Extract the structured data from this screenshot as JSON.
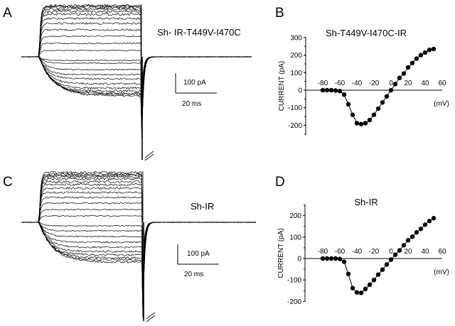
{
  "panels": {
    "A": {
      "letter": "A",
      "title": "Sh- IR-T449V-I470C",
      "scale_current": "100 pA",
      "scale_time": "20 ms"
    },
    "B": {
      "letter": "B"
    },
    "C": {
      "letter": "C",
      "title": "Sh-IR",
      "scale_current": "100 pA",
      "scale_time": "20 ms"
    },
    "D": {
      "letter": "D"
    }
  },
  "chart_data": [
    {
      "panel": "A",
      "type": "line",
      "description_kind": "current traces",
      "scale_bars": {
        "current": "100 pA",
        "time": "20 ms"
      }
    },
    {
      "panel": "B",
      "type": "line",
      "title": "Sh-T449V-I470C-IR",
      "ylabel": "CURRENT (pA)",
      "xlabel": "(mV)",
      "xlim": [
        -80,
        60
      ],
      "ylim": [
        -250,
        300
      ],
      "xticks": [
        "-80",
        "-60",
        "-40",
        "-20",
        "0",
        "20",
        "40",
        "60"
      ],
      "yticks": [
        "300",
        "200",
        "100",
        "0",
        "-100",
        "-200"
      ],
      "marker": "filled-circle",
      "x": [
        -80,
        -75,
        -70,
        -65,
        -60,
        -55,
        -50,
        -45,
        -40,
        -35,
        -30,
        -25,
        -20,
        -15,
        -10,
        -5,
        0,
        5,
        10,
        15,
        20,
        25,
        30,
        35,
        40,
        45,
        50
      ],
      "y": [
        0,
        0,
        0,
        -2,
        -5,
        -25,
        -80,
        -140,
        -188,
        -193,
        -188,
        -170,
        -140,
        -105,
        -70,
        -35,
        0,
        35,
        70,
        95,
        130,
        155,
        180,
        200,
        215,
        230,
        235
      ]
    },
    {
      "panel": "C",
      "type": "line",
      "description_kind": "current traces",
      "scale_bars": {
        "current": "100 pA",
        "time": "20 ms"
      }
    },
    {
      "panel": "D",
      "type": "line",
      "title": "Sh-IR",
      "ylabel": "CURRENT (pA)",
      "xlabel": "(mV)",
      "xlim": [
        -80,
        60
      ],
      "ylim": [
        -200,
        250
      ],
      "xticks": [
        "-80",
        "-60",
        "-40",
        "-20",
        "0",
        "20",
        "40",
        "60"
      ],
      "yticks": [
        "200",
        "100",
        "0",
        "-100",
        "-200"
      ],
      "marker": "filled-circle",
      "x": [
        -80,
        -75,
        -70,
        -65,
        -60,
        -55,
        -50,
        -45,
        -40,
        -35,
        -30,
        -25,
        -20,
        -15,
        -10,
        -5,
        0,
        5,
        10,
        15,
        20,
        25,
        30,
        35,
        40,
        45,
        50
      ],
      "y": [
        0,
        0,
        0,
        0,
        -2,
        -15,
        -72,
        -138,
        -158,
        -160,
        -142,
        -122,
        -100,
        -75,
        -52,
        -28,
        -5,
        18,
        38,
        62,
        85,
        102,
        122,
        138,
        158,
        175,
        188
      ]
    }
  ]
}
